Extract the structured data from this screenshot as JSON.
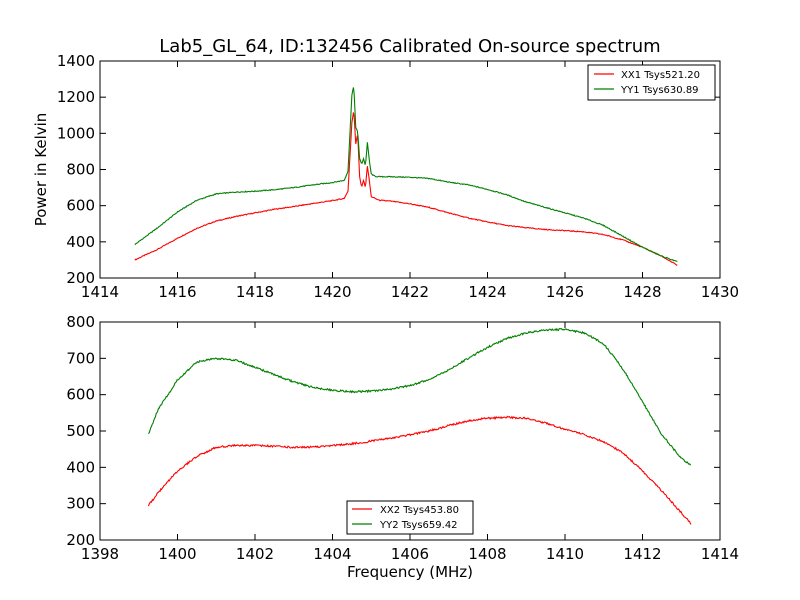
{
  "title": "Lab5_GL_64, ID:132456 Calibrated On-source spectrum",
  "chart_data": [
    {
      "type": "line",
      "ylabel": "Power in Kelvin",
      "xlabel": "",
      "xlim": [
        1414,
        1430
      ],
      "ylim": [
        200,
        1400
      ],
      "xticks": [
        1414,
        1416,
        1418,
        1420,
        1422,
        1424,
        1426,
        1428,
        1430
      ],
      "yticks": [
        200,
        400,
        600,
        800,
        1000,
        1200,
        1400
      ],
      "legend_position": "top-right",
      "series": [
        {
          "name": "XX1 Tsys521.20",
          "color": "#ff0000",
          "x": [
            1414.9,
            1415.5,
            1416.0,
            1416.5,
            1417.0,
            1417.5,
            1418.0,
            1418.5,
            1419.0,
            1419.5,
            1420.0,
            1420.3,
            1420.4,
            1420.5,
            1420.55,
            1420.6,
            1420.65,
            1420.7,
            1420.75,
            1420.8,
            1420.85,
            1420.9,
            1420.95,
            1421.0,
            1421.1,
            1421.2,
            1421.5,
            1422.0,
            1422.5,
            1423.0,
            1423.5,
            1424.0,
            1424.5,
            1425.0,
            1425.5,
            1426.0,
            1426.5,
            1427.0,
            1427.5,
            1428.0,
            1428.5,
            1428.9
          ],
          "y": [
            300,
            360,
            420,
            475,
            515,
            540,
            560,
            580,
            595,
            612,
            628,
            640,
            680,
            1060,
            1130,
            940,
            1000,
            760,
            700,
            740,
            700,
            820,
            740,
            650,
            640,
            630,
            625,
            610,
            590,
            560,
            532,
            510,
            490,
            478,
            468,
            462,
            455,
            440,
            410,
            370,
            320,
            270
          ]
        },
        {
          "name": "YY1 Tsys630.89",
          "color": "#008000",
          "x": [
            1414.9,
            1415.5,
            1416.0,
            1416.5,
            1417.0,
            1417.5,
            1418.0,
            1418.5,
            1419.0,
            1419.5,
            1420.0,
            1420.3,
            1420.4,
            1420.5,
            1420.55,
            1420.6,
            1420.65,
            1420.7,
            1420.75,
            1420.8,
            1420.85,
            1420.9,
            1420.95,
            1421.0,
            1421.1,
            1421.2,
            1421.5,
            1422.0,
            1422.5,
            1423.0,
            1423.5,
            1424.0,
            1424.5,
            1425.0,
            1425.5,
            1426.0,
            1426.5,
            1427.0,
            1427.5,
            1428.0,
            1428.5,
            1428.9
          ],
          "y": [
            385,
            480,
            565,
            630,
            665,
            675,
            680,
            688,
            700,
            715,
            728,
            740,
            790,
            1210,
            1265,
            1030,
            1010,
            860,
            830,
            860,
            820,
            950,
            850,
            775,
            762,
            760,
            760,
            757,
            750,
            730,
            715,
            690,
            660,
            620,
            590,
            560,
            530,
            490,
            430,
            370,
            320,
            290
          ]
        }
      ]
    },
    {
      "type": "line",
      "xlabel": "Frequency (MHz)",
      "ylabel": "",
      "xlim": [
        1398,
        1414
      ],
      "ylim": [
        200,
        800
      ],
      "xticks": [
        1398,
        1400,
        1402,
        1404,
        1406,
        1408,
        1410,
        1412,
        1414
      ],
      "yticks": [
        200,
        300,
        400,
        500,
        600,
        700,
        800
      ],
      "legend_position": "bottom-center",
      "series": [
        {
          "name": "XX2 Tsys453.80",
          "color": "#ff0000",
          "x": [
            1399.25,
            1399.5,
            1400.0,
            1400.5,
            1401.0,
            1401.5,
            1402.0,
            1402.5,
            1403.0,
            1403.5,
            1404.0,
            1404.5,
            1405.0,
            1405.5,
            1406.0,
            1406.5,
            1407.0,
            1407.5,
            1408.0,
            1408.5,
            1409.0,
            1409.5,
            1410.0,
            1410.5,
            1411.0,
            1411.5,
            1412.0,
            1412.5,
            1413.0,
            1413.25
          ],
          "y": [
            295,
            330,
            390,
            430,
            455,
            460,
            460,
            458,
            455,
            456,
            460,
            465,
            472,
            480,
            490,
            500,
            515,
            528,
            535,
            538,
            535,
            522,
            505,
            490,
            470,
            440,
            390,
            335,
            275,
            245
          ]
        },
        {
          "name": "YY2 Tsys659.42",
          "color": "#008000",
          "x": [
            1399.25,
            1399.5,
            1400.0,
            1400.5,
            1401.0,
            1401.5,
            1402.0,
            1402.5,
            1403.0,
            1403.5,
            1404.0,
            1404.5,
            1405.0,
            1405.5,
            1406.0,
            1406.5,
            1407.0,
            1407.5,
            1408.0,
            1408.5,
            1409.0,
            1409.5,
            1410.0,
            1410.5,
            1411.0,
            1411.5,
            1412.0,
            1412.5,
            1413.0,
            1413.25
          ],
          "y": [
            490,
            560,
            640,
            690,
            700,
            695,
            675,
            655,
            635,
            620,
            612,
            608,
            610,
            615,
            625,
            642,
            668,
            700,
            730,
            755,
            770,
            778,
            780,
            770,
            740,
            670,
            580,
            490,
            425,
            405
          ]
        }
      ]
    }
  ]
}
